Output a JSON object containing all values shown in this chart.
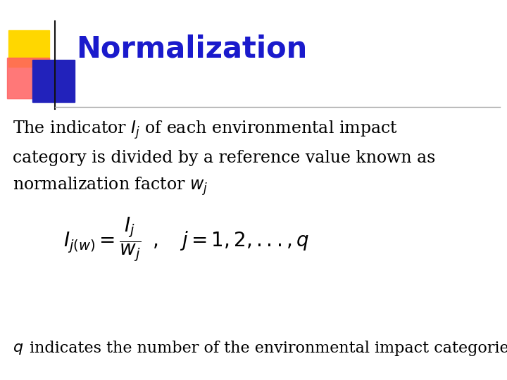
{
  "title": "Normalization",
  "title_color": "#1a1acc",
  "title_fontsize": 30,
  "bg_color": "#ffffff",
  "body_lines": [
    "The indicator $I_j$ of each environmental impact",
    "category is divided by a reference value known as",
    "normalization factor $w_j$"
  ],
  "formula": "$I_{j(w)} = \\dfrac{I_j}{w_j}\\;\\;,\\quad j=1,2,...,q$",
  "footer_italic": "$q$",
  "footer_regular": " indicates the number of the environmental impact categories.",
  "body_fontsize": 17,
  "formula_fontsize": 20,
  "footer_fontsize": 16,
  "yellow_color": "#FFD700",
  "red_color": "#FF6060",
  "blue_color": "#2222BB",
  "vline_color": "#111111",
  "hline_color": "#aaaaaa"
}
